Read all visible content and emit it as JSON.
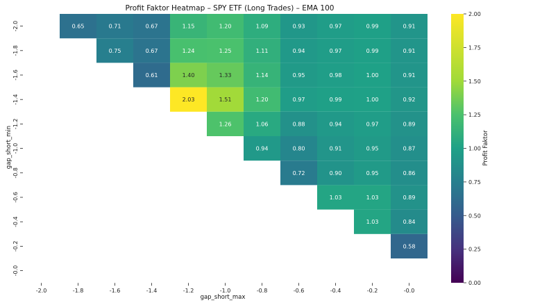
{
  "chart_data": {
    "type": "heatmap",
    "title": "Profit Faktor Heatmap – SPY ETF (Long Trades) – EMA 100",
    "xlabel": "gap_short_max",
    "ylabel": "gap_short_min",
    "x_categories": [
      "-2.0",
      "-1.8",
      "-1.6",
      "-1.4",
      "-1.2",
      "-1.0",
      "-0.8",
      "-0.6",
      "-0.4",
      "-0.2",
      "-0.0"
    ],
    "y_categories": [
      "-2.0",
      "-1.8",
      "-1.6",
      "-1.4",
      "-1.2",
      "-1.0",
      "-0.8",
      "-0.6",
      "-0.4",
      "-0.2",
      "-0.0"
    ],
    "values": [
      [
        null,
        0.65,
        0.71,
        0.67,
        1.15,
        1.2,
        1.09,
        0.93,
        0.97,
        0.99,
        0.91
      ],
      [
        null,
        null,
        0.75,
        0.67,
        1.24,
        1.25,
        1.11,
        0.94,
        0.97,
        0.99,
        0.91
      ],
      [
        null,
        null,
        null,
        0.61,
        1.4,
        1.33,
        1.14,
        0.95,
        0.98,
        1.0,
        0.91
      ],
      [
        null,
        null,
        null,
        null,
        2.03,
        1.51,
        1.2,
        0.97,
        0.99,
        1.0,
        0.92
      ],
      [
        null,
        null,
        null,
        null,
        null,
        1.26,
        1.06,
        0.88,
        0.94,
        0.97,
        0.89
      ],
      [
        null,
        null,
        null,
        null,
        null,
        null,
        0.94,
        0.8,
        0.91,
        0.95,
        0.87
      ],
      [
        null,
        null,
        null,
        null,
        null,
        null,
        null,
        0.72,
        0.9,
        0.95,
        0.86
      ],
      [
        null,
        null,
        null,
        null,
        null,
        null,
        null,
        null,
        1.03,
        1.03,
        0.89
      ],
      [
        null,
        null,
        null,
        null,
        null,
        null,
        null,
        null,
        null,
        1.03,
        0.84
      ],
      [
        null,
        null,
        null,
        null,
        null,
        null,
        null,
        null,
        null,
        null,
        0.58
      ],
      [
        null,
        null,
        null,
        null,
        null,
        null,
        null,
        null,
        null,
        null,
        null
      ]
    ],
    "colorbar": {
      "label": "Profit Faktor",
      "vmin": 0.0,
      "vmax": 2.0,
      "ticks": [
        "0.00",
        "0.25",
        "0.50",
        "0.75",
        "1.00",
        "1.25",
        "1.50",
        "1.75",
        "2.00"
      ],
      "colormap": "viridis"
    }
  }
}
